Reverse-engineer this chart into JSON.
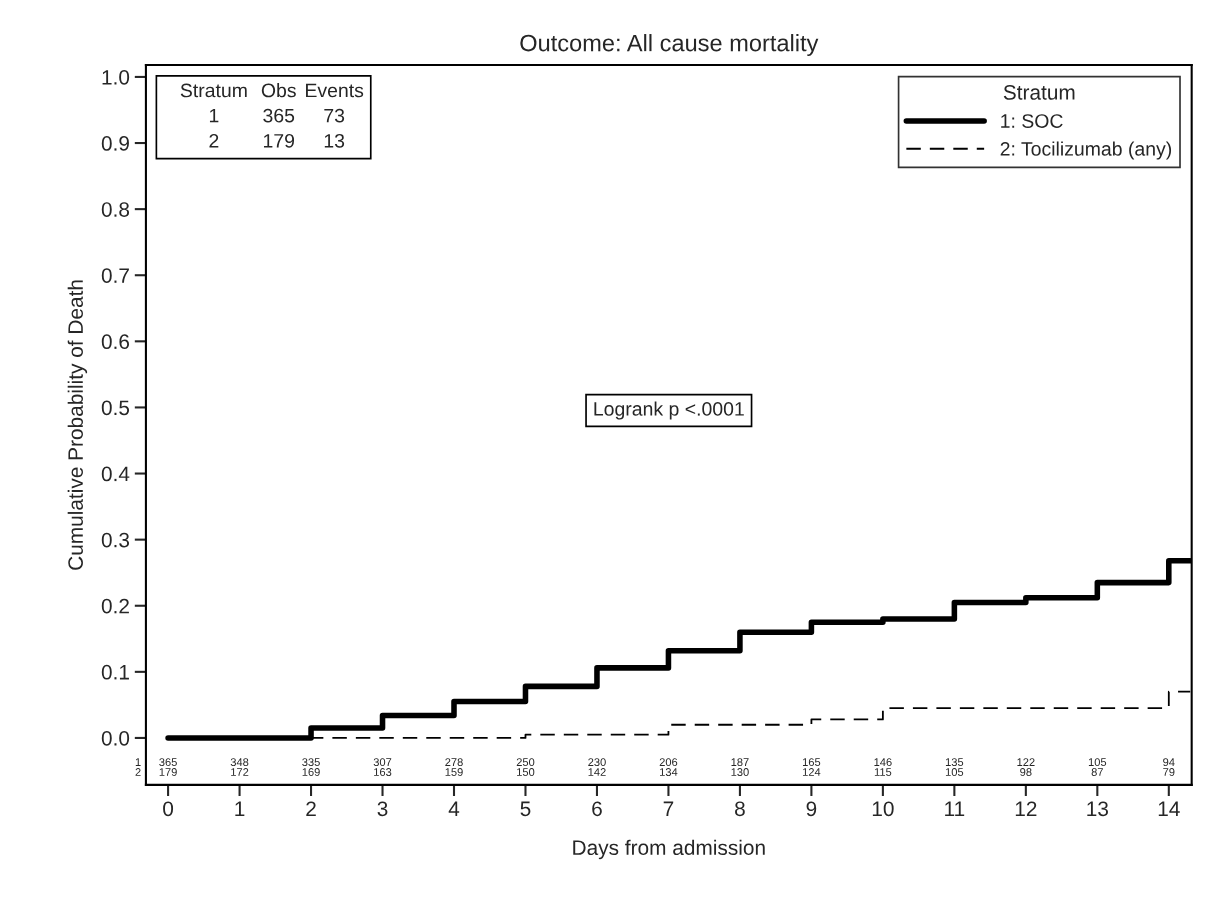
{
  "chart_data": {
    "type": "step",
    "title": "Outcome: All cause mortality",
    "xlabel": "Days from admission",
    "ylabel": "Cumulative Probability of Death",
    "legend_title": "Stratum",
    "legend": "top right",
    "grid": false,
    "marker": "none",
    "xlim": [
      -0.31,
      14.32
    ],
    "xticks": [
      0,
      1,
      2,
      3,
      4,
      5,
      6,
      7,
      8,
      9,
      10,
      11,
      12,
      13,
      14
    ],
    "ylim": [
      -0.071,
      1.018
    ],
    "yticks": [
      {
        "value": 0,
        "label": "0.0"
      },
      {
        "value": 0.1,
        "label": "0.1"
      },
      {
        "value": 0.2,
        "label": "0.2"
      },
      {
        "value": 0.3,
        "label": "0.3"
      },
      {
        "value": 0.4,
        "label": "0.4"
      },
      {
        "value": 0.5,
        "label": "0.5"
      },
      {
        "value": 0.6,
        "label": "0.6"
      },
      {
        "value": 0.7,
        "label": "0.7"
      },
      {
        "value": 0.8,
        "label": "0.8"
      },
      {
        "value": 0.9,
        "label": "0.9"
      },
      {
        "value": 1,
        "label": "1.0"
      }
    ],
    "series": [
      {
        "name": "1: SOC",
        "color": "#000000",
        "line_style": "solid",
        "x": [
          0,
          2,
          3,
          4,
          5,
          6,
          7,
          8,
          9,
          10,
          11,
          12,
          13,
          14,
          14.3
        ],
        "values": [
          0,
          0.015,
          0.034,
          0.055,
          0.078,
          0.106,
          0.132,
          0.16,
          0.175,
          0.18,
          0.205,
          0.212,
          0.235,
          0.268,
          0.268
        ]
      },
      {
        "name": "2: Tocilizumab (any)",
        "color": "#000000",
        "line_style": "dashed",
        "x": [
          0,
          5,
          7,
          9,
          10,
          14,
          14.3
        ],
        "values": [
          0,
          0.005,
          0.02,
          0.028,
          0.045,
          0.07,
          0.07
        ]
      }
    ],
    "annotations": [
      "Stratum",
      "Obs",
      "Events",
      "1",
      "365",
      "73",
      "2",
      "179",
      "13",
      "Logrank p <.0001",
      "1",
      "2",
      "365",
      "348",
      "335",
      "307",
      "278",
      "250",
      "230",
      "206",
      "187",
      "165",
      "146",
      "135",
      "122",
      "105",
      "94",
      "179",
      "172",
      "169",
      "163",
      "159",
      "150",
      "142",
      "134",
      "130",
      "124",
      "115",
      "105",
      "98",
      "87",
      "79"
    ]
  }
}
